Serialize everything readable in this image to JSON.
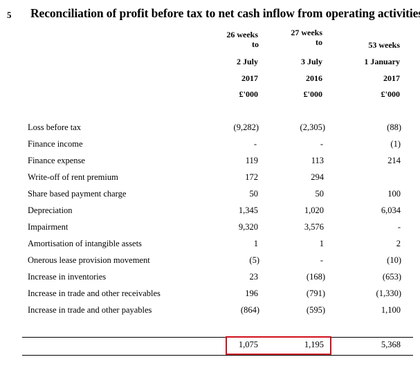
{
  "note": {
    "number": "5",
    "title": "Reconciliation of profit before tax to net cash inflow from operating activities"
  },
  "columns": [
    {
      "period_line1": "26 weeks",
      "period_line2": "to",
      "date": "2 July",
      "year": "2017",
      "unit": "£'000"
    },
    {
      "period_line1": "27 weeks",
      "period_line2": "to",
      "date": "3 July",
      "year": "2016",
      "unit": "£'000"
    },
    {
      "period_line1": "",
      "period_line2": "53 weeks",
      "date": "1 January",
      "year": "2017",
      "unit": "£'000"
    }
  ],
  "rows": [
    {
      "label": "Loss before tax",
      "values": [
        "(9,282)",
        "(2,305)",
        "(88)"
      ]
    },
    {
      "label": "Finance income",
      "values": [
        "-",
        "-",
        "(1)"
      ]
    },
    {
      "label": "Finance expense",
      "values": [
        "119",
        "113",
        "214"
      ]
    },
    {
      "label": "Write-off of rent premium",
      "values": [
        "172",
        "294",
        ""
      ]
    },
    {
      "label": "Share based payment charge",
      "values": [
        "50",
        "50",
        "100"
      ]
    },
    {
      "label": "Depreciation",
      "values": [
        "1,345",
        "1,020",
        "6,034"
      ]
    },
    {
      "label": "Impairment",
      "values": [
        "9,320",
        "3,576",
        "-"
      ]
    },
    {
      "label": "Amortisation of intangible assets",
      "values": [
        "1",
        "1",
        "2"
      ]
    },
    {
      "label": "Onerous lease provision movement",
      "values": [
        "(5)",
        "-",
        "(10)"
      ]
    },
    {
      "label": "Increase in inventories",
      "values": [
        "23",
        "(168)",
        "(653)"
      ]
    },
    {
      "label": "Increase in trade and other receivables",
      "values": [
        "196",
        "(791)",
        "(1,330)"
      ]
    },
    {
      "label": "Increase in trade and other payables",
      "values": [
        "(864)",
        "(595)",
        "1,100"
      ]
    }
  ],
  "total": {
    "values": [
      "1,075",
      "1,195",
      "5,368"
    ]
  },
  "colors": {
    "highlight": "#d0101c"
  }
}
